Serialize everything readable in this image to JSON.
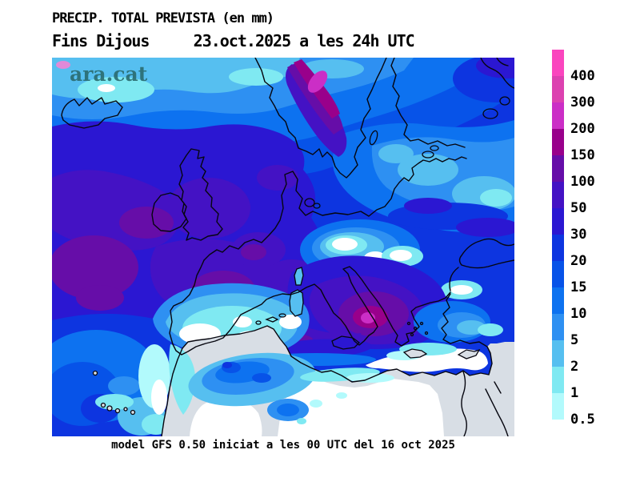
{
  "header": {
    "title": "PRECIP. TOTAL PREVISTA (en mm)",
    "subtitle": "Fins Dijous     23.oct.2025 a les 24h UTC"
  },
  "watermark": {
    "text": "ara.cat"
  },
  "footer": {
    "text": "model GFS 0.50 iniciat a les 00 UTC del 16 oct 2025"
  },
  "legend": {
    "unit": "mm",
    "values": [
      "400",
      "300",
      "200",
      "150",
      "100",
      "50",
      "30",
      "20",
      "15",
      "10",
      "5",
      "2",
      "1",
      "0.5"
    ],
    "colors": [
      "#FA45BE",
      "#DC41B0",
      "#CB2EC6",
      "#99008B",
      "#660DA8",
      "#4412C4",
      "#2B17D2",
      "#0D35E0",
      "#0753E8",
      "#0D72F0",
      "#2E90F2",
      "#56BFF0",
      "#7FE9F2",
      "#B2FAFC"
    ]
  },
  "map_colors": {
    "dry_land_gray": "#D8DEE5",
    "dry_sea_white": "#FFFFFF",
    "coastline": "#06060F",
    "watermark_teal": "#2A6B6F"
  }
}
